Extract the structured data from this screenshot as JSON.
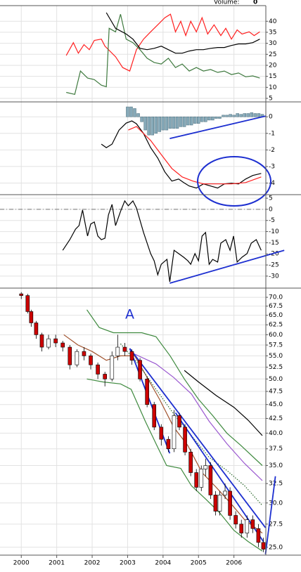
{
  "header": {
    "volume_label": "Volume:",
    "volume_value": "0"
  },
  "chart_data": [
    {
      "type": "line",
      "grid": true,
      "xlim": [
        1999.4,
        2006.9
      ],
      "ylim": [
        3.4,
        47.1
      ],
      "yticks": [
        40,
        35,
        30,
        25,
        20,
        15,
        10,
        5
      ],
      "series": [
        {
          "color": "#ff2020",
          "x": [
            2001.27,
            2001.47,
            2001.61,
            2001.77,
            2001.92,
            2002.06,
            2002.26,
            2002.36,
            2002.66,
            2002.86,
            2003.06,
            2003.25,
            2003.45,
            2003.65,
            2003.85,
            2004.05,
            2004.21,
            2004.35,
            2004.5,
            2004.64,
            2004.78,
            2004.94,
            2005.1,
            2005.26,
            2005.44,
            2005.63,
            2005.77,
            2005.93,
            2006.09,
            2006.23,
            2006.43,
            2006.57,
            2006.73
          ],
          "values": [
            24.5,
            30.3,
            25.5,
            29.4,
            27.1,
            31.3,
            31.9,
            28.7,
            23.9,
            19,
            17.4,
            27.1,
            31.9,
            35.2,
            38.4,
            41.6,
            43.2,
            35.2,
            40,
            33.5,
            40,
            35.2,
            41.6,
            34.2,
            38.4,
            33.5,
            36.8,
            31.9,
            36.1,
            34.2,
            35.2,
            33.5,
            35.2
          ]
        },
        {
          "color": "#3f7a3f",
          "x": [
            2001.27,
            2001.51,
            2001.67,
            2001.87,
            2002.06,
            2002.26,
            2002.4,
            2002.48,
            2002.66,
            2002.8,
            2002.96,
            2003.15,
            2003.35,
            2003.55,
            2003.75,
            2003.95,
            2004.15,
            2004.35,
            2004.54,
            2004.74,
            2004.94,
            2005.14,
            2005.34,
            2005.54,
            2005.73,
            2005.93,
            2006.13,
            2006.33,
            2006.53,
            2006.73
          ],
          "values": [
            7.7,
            6.8,
            17.4,
            14.2,
            13.5,
            11,
            10.3,
            36.8,
            35.2,
            43.2,
            31.9,
            30.3,
            27.1,
            23.2,
            21.3,
            20.6,
            23.2,
            19,
            20.6,
            17.4,
            19,
            17.4,
            18.1,
            16.8,
            17.4,
            15.8,
            16.5,
            14.8,
            15.2,
            14.2
          ]
        },
        {
          "color": "#000000",
          "x": [
            2002.4,
            2002.66,
            2002.96,
            2003.15,
            2003.35,
            2003.55,
            2003.75,
            2003.95,
            2004.15,
            2004.35,
            2004.54,
            2004.74,
            2004.94,
            2005.14,
            2005.34,
            2005.54,
            2005.73,
            2005.93,
            2006.13,
            2006.33,
            2006.53,
            2006.73
          ],
          "values": [
            43.9,
            36.8,
            34.2,
            31.9,
            27.7,
            27.1,
            27.7,
            28.7,
            27.1,
            25.5,
            25.5,
            26.5,
            27.1,
            27.1,
            27.7,
            28.1,
            28.1,
            29,
            29.7,
            29.7,
            30.3,
            31.9
          ]
        }
      ]
    },
    {
      "type": "line",
      "grid": true,
      "xlim": [
        1999.4,
        2006.9
      ],
      "ylim": [
        -4.7,
        0.9
      ],
      "yticks": [
        0,
        -1,
        -2,
        -3,
        -4
      ],
      "series": [
        {
          "style": "histogram",
          "color": "#86a9b8",
          "x": [
            2003.0,
            2003.1,
            2003.2,
            2003.3,
            2003.4,
            2003.5,
            2003.6,
            2003.7,
            2003.8,
            2003.9,
            2004.0,
            2004.1,
            2004.2,
            2004.3,
            2004.4,
            2004.5,
            2004.6,
            2004.7,
            2004.8,
            2004.9,
            2005.0,
            2005.1,
            2005.2,
            2005.3,
            2005.4,
            2005.5,
            2005.6,
            2005.7,
            2005.8,
            2005.9,
            2006.0,
            2006.1,
            2006.2,
            2006.3,
            2006.4,
            2006.5,
            2006.6,
            2006.7,
            2006.8
          ],
          "values": [
            0.6,
            0.6,
            0.5,
            0.2,
            -0.3,
            -0.8,
            -1.1,
            -1.1,
            -1.0,
            -0.9,
            -0.8,
            -0.8,
            -0.7,
            -0.7,
            -0.7,
            -0.6,
            -0.6,
            -0.5,
            -0.5,
            -0.4,
            -0.4,
            -0.3,
            -0.3,
            -0.2,
            -0.2,
            -0.1,
            -0.1,
            0.1,
            0.1,
            0.15,
            0.1,
            0.2,
            0.15,
            0.2,
            0.2,
            0.25,
            0.2,
            0.2,
            0.15
          ]
        },
        {
          "color": "#000000",
          "x": [
            2002.26,
            2002.4,
            2002.56,
            2002.76,
            2002.96,
            2003.12,
            2003.25,
            2003.45,
            2003.65,
            2003.85,
            2004.05,
            2004.25,
            2004.44,
            2004.58,
            2004.74,
            2004.94,
            2005.14,
            2005.34,
            2005.54,
            2005.73,
            2005.93,
            2006.13,
            2006.33,
            2006.53,
            2006.77
          ],
          "values": [
            -1.65,
            -1.86,
            -1.65,
            -0.8,
            -0.38,
            -0.25,
            -0.42,
            -1.01,
            -1.86,
            -2.49,
            -3.33,
            -3.88,
            -3.76,
            -3.97,
            -4.18,
            -4.3,
            -4.05,
            -4.18,
            -4.3,
            -4.05,
            -4.01,
            -4.05,
            -3.76,
            -3.54,
            -3.42
          ]
        },
        {
          "color": "#ff2020",
          "x": [
            2003.02,
            2003.25,
            2003.45,
            2003.65,
            2003.95,
            2004.25,
            2004.54,
            2004.84,
            2005.14,
            2005.54,
            2005.93,
            2006.33,
            2006.77
          ],
          "values": [
            -0.8,
            -0.59,
            -1.01,
            -1.43,
            -2.28,
            -3.12,
            -3.63,
            -3.88,
            -4.05,
            -4.05,
            -4.05,
            -3.97,
            -3.63
          ]
        },
        {
          "color": "#1d2fd0",
          "x": [
            2004.19,
            2006.89
          ],
          "values": [
            -1.31,
            0.04
          ]
        }
      ]
    },
    {
      "type": "line",
      "grid": true,
      "xlim": [
        1999.4,
        2006.9
      ],
      "ylim": [
        -35.4,
        6.6
      ],
      "yticks": [
        5,
        0,
        -5,
        -10,
        -15,
        -20,
        -25,
        -30
      ],
      "hline": 0,
      "series": [
        {
          "color": "#000000",
          "x": [
            2001.17,
            2001.37,
            2001.53,
            2001.63,
            2001.73,
            2001.87,
            2001.96,
            2002.06,
            2002.16,
            2002.26,
            2002.36,
            2002.46,
            2002.56,
            2002.66,
            2002.8,
            2002.92,
            2003.02,
            2003.15,
            2003.25,
            2003.45,
            2003.65,
            2003.75,
            2003.85,
            2003.95,
            2004.11,
            2004.19,
            2004.31,
            2004.44,
            2004.58,
            2004.7,
            2004.78,
            2004.9,
            2005.0,
            2005.1,
            2005.2,
            2005.3,
            2005.4,
            2005.54,
            2005.63,
            2005.77,
            2005.89,
            2005.99,
            2006.09,
            2006.23,
            2006.37,
            2006.49,
            2006.63,
            2006.77
          ],
          "values": [
            -18.4,
            -13.6,
            -8.9,
            -7.3,
            -0.3,
            -12,
            -6.6,
            -5.7,
            -12,
            -13.6,
            -13,
            -2.5,
            2.2,
            -7.3,
            -0.9,
            3.8,
            1.6,
            3.8,
            0.6,
            -10.4,
            -19.9,
            -23.1,
            -29.4,
            -24.7,
            -22.5,
            -32.6,
            -18.4,
            -19.9,
            -21.5,
            -23.1,
            -24.7,
            -19.9,
            -23.1,
            -12,
            -10.4,
            -24.7,
            -22.5,
            -23.7,
            -15.2,
            -13.6,
            -18.4,
            -12,
            -23.7,
            -21.5,
            -19.9,
            -15.2,
            -13.6,
            -18.4
          ]
        },
        {
          "color": "#1d2fd0",
          "x": [
            2004.19,
            2007.42
          ],
          "values": [
            -33.2,
            -18.4
          ]
        }
      ]
    },
    {
      "type": "candlestick",
      "grid": true,
      "log_scale": true,
      "xlim": [
        1999.4,
        2006.9
      ],
      "ylim": [
        24.2,
        72.7
      ],
      "xticks": [
        2000,
        2001,
        2002,
        2003,
        2004,
        2005,
        2006
      ],
      "yticks": [
        {
          "value": 70,
          "label": "70.0"
        },
        {
          "value": 67.5,
          "label": "67.5"
        },
        {
          "value": 65,
          "label": "65.0"
        },
        {
          "value": 62.5,
          "label": "62.5"
        },
        {
          "value": 60,
          "label": "60.0"
        },
        {
          "value": 57.5,
          "label": "57.5"
        },
        {
          "value": 55,
          "label": "55.0"
        },
        {
          "value": 52.5,
          "label": "52.5"
        },
        {
          "value": 50,
          "label": "50.0"
        },
        {
          "value": 47.5,
          "label": "47.5"
        },
        {
          "value": 45,
          "label": "45.0"
        },
        {
          "value": 42.5,
          "label": "42.5"
        },
        {
          "value": 40,
          "label": "40.0"
        },
        {
          "value": 37.5,
          "label": "37.5"
        },
        {
          "value": 35,
          "label": "35.0"
        },
        {
          "value": 32.5,
          "label": "32.5"
        },
        {
          "value": 30,
          "label": "30.0"
        },
        {
          "value": 27.5,
          "label": "27.5"
        },
        {
          "value": 25,
          "label": "25.0"
        }
      ],
      "annotation": "A",
      "up_color": "#ffffff",
      "down_color": "#cc0000",
      "ohlc": {
        "x": [
          2000.0,
          2000.18,
          2000.28,
          2000.42,
          2000.58,
          2000.77,
          2000.97,
          2001.17,
          2001.37,
          2001.57,
          2001.77,
          2001.96,
          2002.16,
          2002.36,
          2002.56,
          2002.72,
          2002.92,
          2003.12,
          2003.35,
          2003.55,
          2003.75,
          2003.95,
          2004.15,
          2004.31,
          2004.46,
          2004.62,
          2004.78,
          2004.94,
          2005.08,
          2005.2,
          2005.34,
          2005.48,
          2005.6,
          2005.75,
          2005.89,
          2006.05,
          2006.21,
          2006.37,
          2006.53,
          2006.69,
          2006.83
        ],
        "open": [
          71,
          70.5,
          66,
          63,
          60,
          57,
          59,
          58,
          57,
          53,
          56,
          55,
          53,
          51,
          50,
          55,
          57,
          56,
          54,
          50,
          45,
          41,
          39,
          37.5,
          43,
          41,
          37,
          34,
          32,
          34.5,
          35,
          31,
          29,
          31,
          31.5,
          28.5,
          27.5,
          26.5,
          28,
          27,
          25.5
        ],
        "high": [
          71.5,
          71,
          66.5,
          63.5,
          60.5,
          60,
          60,
          58.5,
          57.5,
          56.5,
          57,
          55.5,
          53.5,
          51.5,
          56,
          60,
          58,
          56.5,
          54.5,
          50.5,
          45.5,
          41.5,
          39.5,
          44,
          43.5,
          41.5,
          37.5,
          34.5,
          35,
          36,
          35.5,
          31.5,
          31.5,
          32.5,
          32,
          29,
          28,
          28.5,
          28.5,
          27.5,
          26
        ],
        "low": [
          69.5,
          65.5,
          62,
          59,
          56,
          56.5,
          57,
          56,
          52,
          52.5,
          54,
          52,
          50,
          48.5,
          49.5,
          54,
          55,
          53,
          49.5,
          44.5,
          40.5,
          38,
          37,
          37,
          40.5,
          36.5,
          33.5,
          31.5,
          31.5,
          33.5,
          30.5,
          28.5,
          28.5,
          30.5,
          28,
          27,
          26,
          26,
          26.5,
          25,
          24.5
        ],
        "close": [
          70.5,
          66,
          63,
          60,
          57,
          59,
          58,
          57,
          53,
          56,
          55,
          53,
          51,
          50,
          55,
          57,
          56,
          54,
          50,
          45,
          41,
          39,
          37.5,
          43,
          41,
          37,
          34,
          32,
          34.5,
          35,
          31,
          29,
          31,
          31.5,
          28.5,
          27.5,
          26.5,
          28,
          27,
          25.5,
          24.8
        ]
      },
      "series": [
        {
          "color": "#a0522d",
          "x": [
            2001.2,
            2001.6,
            2002.0,
            2002.4,
            2002.8,
            2003.2,
            2003.5,
            2003.9,
            2004.3,
            2004.7,
            2005.1,
            2005.5,
            2005.9,
            2006.3,
            2006.8
          ],
          "values": [
            60,
            57.5,
            56,
            54,
            55,
            55,
            51,
            46,
            41,
            38,
            34,
            32,
            30,
            28,
            26.5
          ]
        },
        {
          "color": "#3f8a3f",
          "x": [
            2001.85,
            2002.2,
            2002.6,
            2003.0,
            2003.4,
            2003.8,
            2004.2,
            2004.6,
            2005.0,
            2005.4,
            2005.8,
            2006.2,
            2006.8
          ],
          "values": [
            66.5,
            61.8,
            60.5,
            60.5,
            60.5,
            59.5,
            55,
            50,
            46,
            43,
            40,
            38,
            35
          ]
        },
        {
          "color": "#3f8a3f",
          "x": [
            2001.85,
            2002.3,
            2002.8,
            2003.1,
            2003.5,
            2003.8,
            2004.1,
            2004.5,
            2004.8,
            2005.2,
            2005.6,
            2006.0,
            2006.4,
            2006.8
          ],
          "values": [
            50,
            49.4,
            49,
            47.9,
            42,
            38.3,
            35,
            34.6,
            32.2,
            30.5,
            28.8,
            26.8,
            25.6,
            24.6
          ]
        },
        {
          "color": "#9b59d0",
          "x": [
            2003.2,
            2003.8,
            2004.3,
            2004.8,
            2005.3,
            2005.8,
            2006.3,
            2006.8
          ],
          "values": [
            55.4,
            53.2,
            50.3,
            47,
            42,
            38.3,
            35.3,
            32.9
          ]
        },
        {
          "color": "#2e6b2e",
          "linestyle": "dotted",
          "x": [
            2002.8,
            2003.3,
            2003.8,
            2004.3,
            2004.8,
            2005.3,
            2005.8,
            2006.3,
            2006.8
          ],
          "values": [
            57.8,
            53.2,
            47.9,
            43.3,
            39.6,
            36.2,
            34.3,
            32.2,
            29.7
          ]
        },
        {
          "color": "#000000",
          "x": [
            2004.6,
            2005.0,
            2005.5,
            2006.0,
            2006.4,
            2006.8
          ],
          "values": [
            51.8,
            49.4,
            46.7,
            44.5,
            42.2,
            39.6
          ]
        },
        {
          "color": "#1d2fd0",
          "x": [
            2003.06,
            2004.19
          ],
          "values": [
            56.7,
            36.8
          ]
        },
        {
          "color": "#1d2fd0",
          "x": [
            2003.06,
            2006.89
          ],
          "values": [
            56.7,
            27.1
          ]
        },
        {
          "color": "#1d2fd0",
          "x": [
            2004.35,
            2006.83
          ],
          "values": [
            43.5,
            25.6
          ]
        },
        {
          "color": "#1d2fd0",
          "x": [
            2006.89,
            2007.17
          ],
          "values": [
            24.3,
            33.5
          ]
        }
      ]
    }
  ]
}
